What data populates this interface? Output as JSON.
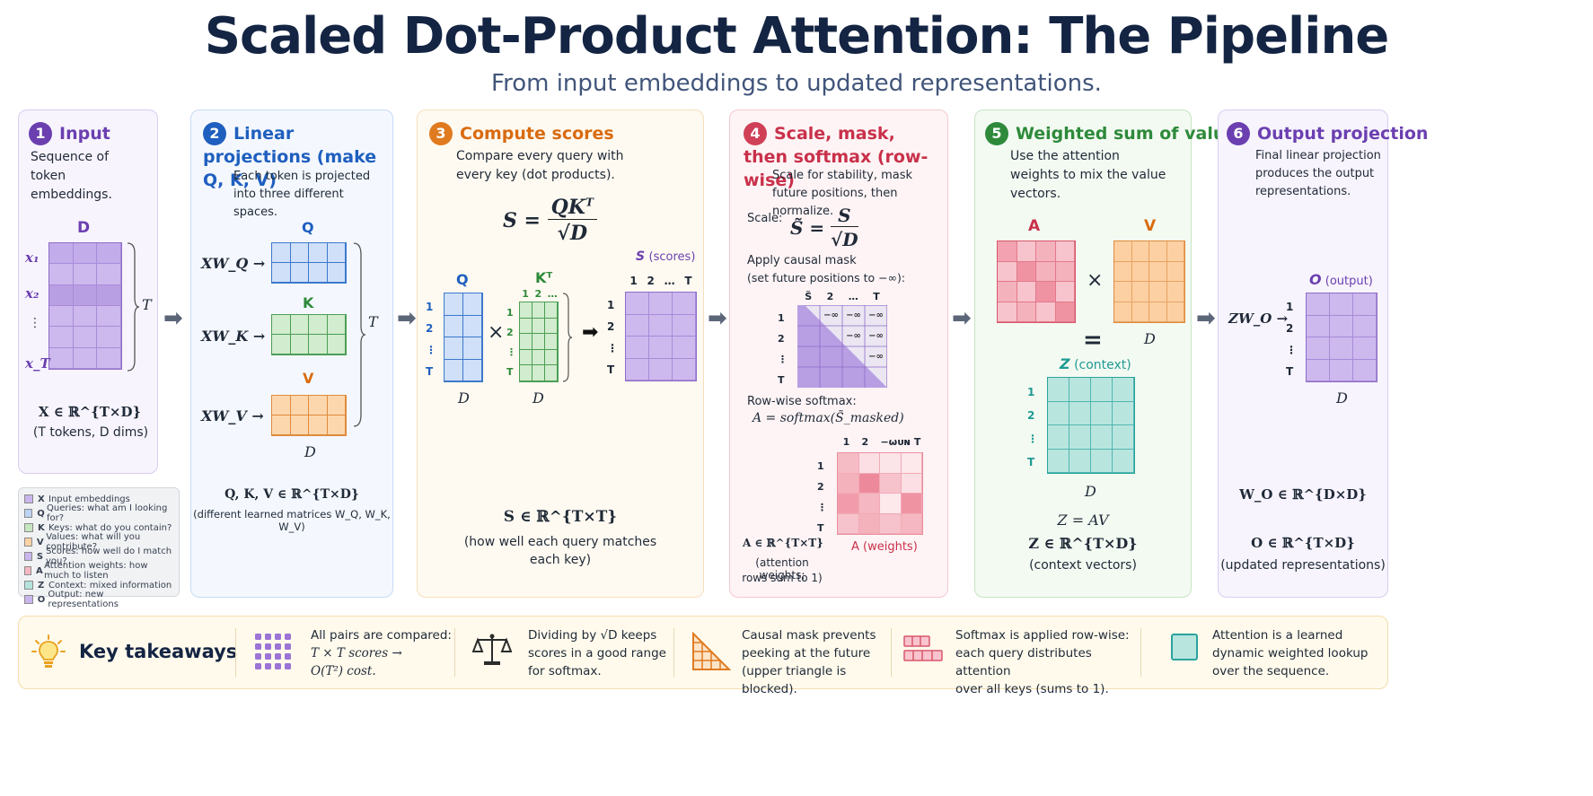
{
  "title": "Scaled Dot-Product Attention: The Pipeline",
  "subtitle": "From input embeddings to updated representations.",
  "colors": {
    "purple": "#6b3fb0",
    "blue": "#1f5fbf",
    "orange": "#d96b10",
    "red": "#c9314a",
    "green": "#2e8a3a",
    "teal": "#1e9b94"
  },
  "panels": [
    {
      "num": "1",
      "title": "Input",
      "desc": "Sequence of token embeddings."
    },
    {
      "num": "2",
      "title": "Linear projections (make Q, K, V)",
      "desc": "Each token is projected into three different spaces."
    },
    {
      "num": "3",
      "title": "Compute scores",
      "desc": "Compare every query with every key (dot products)."
    },
    {
      "num": "4",
      "title": "Scale, mask, then softmax (row-wise)",
      "desc": "Scale for stability, mask future positions, then normalize."
    },
    {
      "num": "5",
      "title": "Weighted sum of values",
      "desc": "Use the attention weights to mix the value vectors."
    },
    {
      "num": "6",
      "title": "Output projection",
      "desc": "Final linear projection produces the output representations."
    }
  ],
  "p1": {
    "D": "D",
    "x1": "x₁",
    "x2": "x₂",
    "dots": "⋮",
    "xT": "x_T",
    "T": "T",
    "formula": "X ∈ ℝ^{T×D}",
    "note": "(T tokens, D dims)"
  },
  "legend": [
    {
      "key": "X",
      "text": "Input embeddings",
      "color": "#c9b6ec"
    },
    {
      "key": "Q",
      "text": "Queries: what am I looking for?",
      "color": "#bcd3f5"
    },
    {
      "key": "K",
      "text": "Keys: what do you contain?",
      "color": "#c4e6c0"
    },
    {
      "key": "V",
      "text": "Values: what will you contribute?",
      "color": "#fbd3a6"
    },
    {
      "key": "S",
      "text": "Scores: how well do I match you?",
      "color": "#c9b6ec"
    },
    {
      "key": "A",
      "text": "Attention weights: how much to listen",
      "color": "#f5b8c3"
    },
    {
      "key": "Z",
      "text": "Context: mixed information",
      "color": "#b4e3de"
    },
    {
      "key": "O",
      "text": "Output: new representations",
      "color": "#c9b6ec"
    }
  ],
  "p2": {
    "Q": "Q",
    "K": "K",
    "V": "V",
    "xwq": "XW_Q →",
    "xwk": "XW_K →",
    "xwv": "XW_V →",
    "T": "T",
    "D": "D",
    "formula": "Q, K, V ∈ ℝ^{T×D}",
    "note": "(different learned matrices W_Q, W_K, W_V)"
  },
  "p3": {
    "eq": "S = QKᵀ / √D",
    "Q": "Q",
    "KT": "Kᵀ",
    "S": "S",
    "S_note": "(scores)",
    "rows": [
      "1",
      "2",
      "⋮",
      "T"
    ],
    "cols": [
      "1",
      "2",
      "…",
      "T"
    ],
    "kcols": [
      "1",
      "2",
      "…"
    ],
    "times": "×",
    "arrow": "➡",
    "D": "D",
    "formula": "S ∈ ℝ^{T×T}",
    "note": "(how well each query matches each key)"
  },
  "p4": {
    "scale_label": "Scale:",
    "scale_eq": "S̃ = S / √D",
    "mask_title": "Apply causal mask",
    "mask_note": "(set future positions to −∞):",
    "mask_cols": [
      "S̃",
      "2",
      "…",
      "T"
    ],
    "mask_rows": [
      "1",
      "2",
      "⋮",
      "T"
    ],
    "neg_inf": "−∞",
    "softmax_title": "Row-wise softmax:",
    "softmax_eq": "A = softmax(S̃_masked)",
    "a_cols": [
      "1",
      "2",
      "−ωᴜɴ T"
    ],
    "a_rows": [
      "1",
      "2",
      "⋮",
      "T"
    ],
    "formula": "A ∈ ℝ^{T×T}",
    "a_label": "A (weights)",
    "note1": "(attention weights;",
    "note2": "rows sum to 1)"
  },
  "p5": {
    "A": "A",
    "V": "V",
    "times": "×",
    "equals": "=",
    "D": "D",
    "Z": "Z",
    "Z_note": "(context)",
    "rows": [
      "1",
      "2",
      "⋮",
      "T"
    ],
    "D2": "D",
    "eq1": "Z = AV",
    "eq2": "Z ∈ ℝ^{T×D}",
    "note": "(context vectors)"
  },
  "p6": {
    "O": "O",
    "O_note": "(output)",
    "zwo": "ZW_O →",
    "rows": [
      "1",
      "2",
      "⋮",
      "T"
    ],
    "D": "D",
    "eq1": "W_O ∈ ℝ^{D×D}",
    "eq2": "O ∈ ℝ^{T×D}",
    "note": "(updated representations)"
  },
  "takeaways": {
    "title": "Key takeaways",
    "items": [
      {
        "l1": "All pairs are compared:",
        "l2": "T × T scores →",
        "l3": "O(T²) cost."
      },
      {
        "l1": "Dividing by √D keeps",
        "l2": "scores in a good range",
        "l3": "for softmax."
      },
      {
        "l1": "Causal mask prevents",
        "l2": "peeking at the future",
        "l3": "(upper triangle is blocked)."
      },
      {
        "l1": "Softmax is applied row-wise:",
        "l2": "each query distributes attention",
        "l3": "over all keys (sums to 1)."
      },
      {
        "l1": "Attention is a learned",
        "l2": "dynamic weighted lookup",
        "l3": "over the sequence."
      }
    ]
  }
}
